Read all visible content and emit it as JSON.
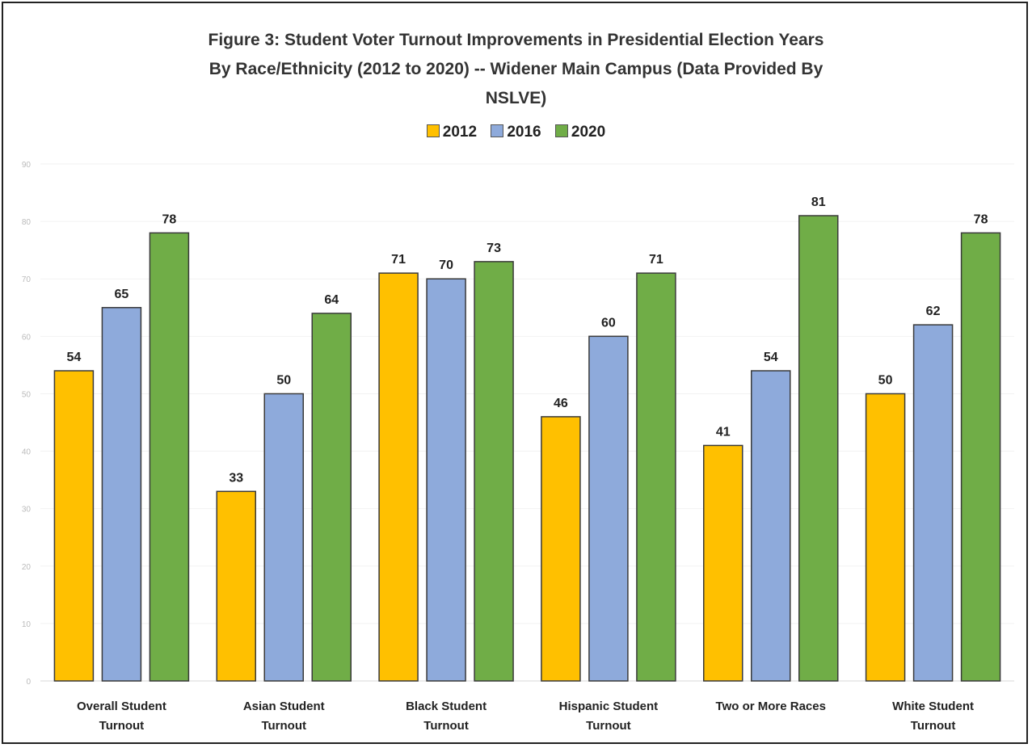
{
  "chart_data": {
    "type": "bar",
    "title": "Figure 3: Student Voter Turnout Improvements in Presidential Election Years By Race/Ethnicity (2012 to 2020) -- Widener Main Campus (Data Provided By NSLVE)",
    "title_lines": [
      "Figure 3: Student Voter Turnout Improvements in Presidential Election Years",
      "By Race/Ethnicity  (2012 to 2020) -- Widener Main Campus (Data Provided By",
      "NSLVE)"
    ],
    "categories": [
      [
        "Overall Student",
        "Turnout"
      ],
      [
        "Asian Student",
        "Turnout"
      ],
      [
        "Black Student",
        "Turnout"
      ],
      [
        "Hispanic Student",
        "Turnout"
      ],
      [
        "Two or More Races"
      ],
      [
        "White Student",
        "Turnout"
      ]
    ],
    "series": [
      {
        "name": "2012",
        "color": "#ffc000",
        "values": [
          54,
          33,
          71,
          46,
          41,
          50
        ]
      },
      {
        "name": "2016",
        "color": "#8eaadb",
        "values": [
          65,
          50,
          70,
          60,
          54,
          62
        ]
      },
      {
        "name": "2020",
        "color": "#70ad47",
        "values": [
          78,
          64,
          73,
          71,
          81,
          78
        ]
      }
    ],
    "ylim": [
      0,
      90
    ],
    "yticks": [
      0,
      10,
      20,
      30,
      40,
      50,
      60,
      70,
      80,
      90
    ],
    "grid": true,
    "legend_position": "top-center",
    "data_labels": true
  }
}
